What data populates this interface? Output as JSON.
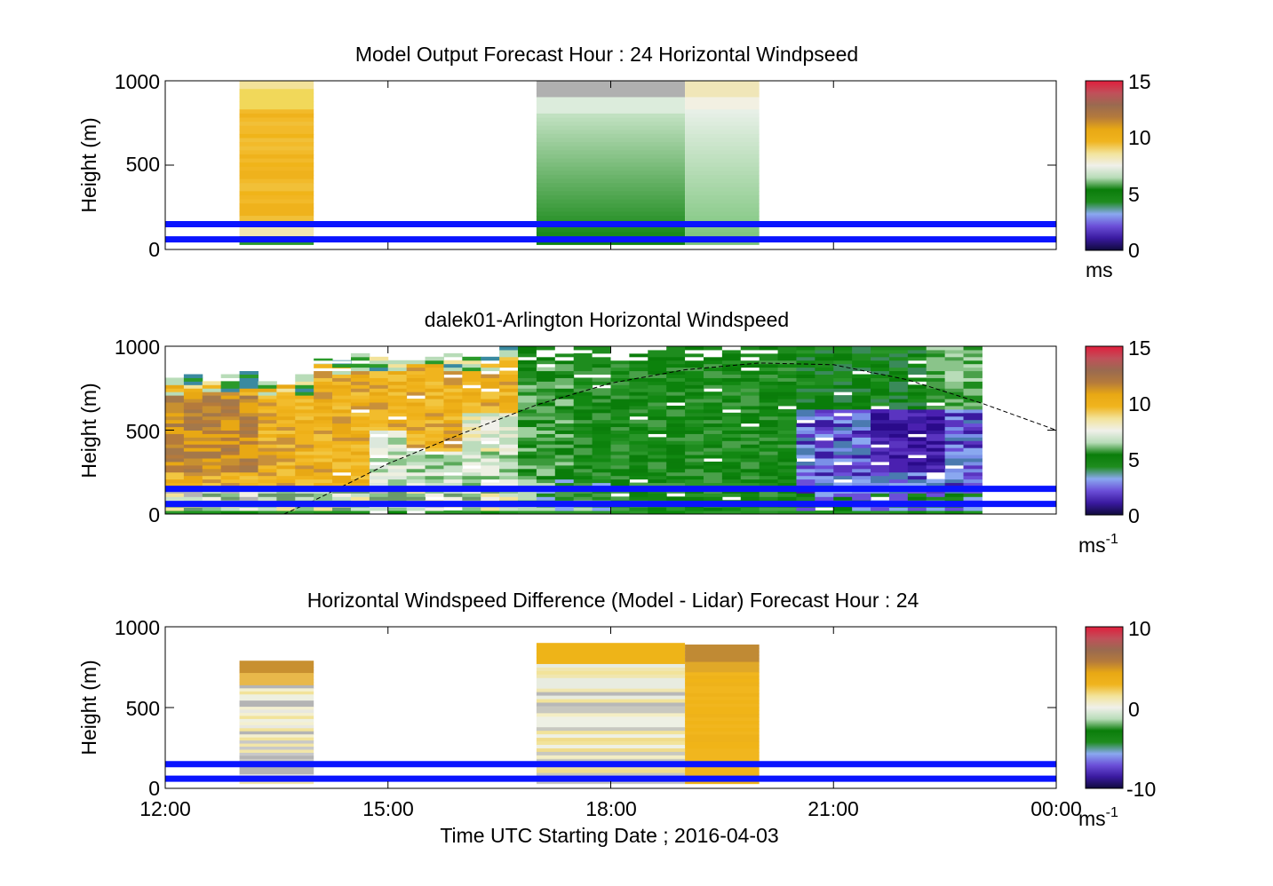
{
  "figure": {
    "xlabel": "Time UTC  Starting Date ; 2016-04-03",
    "x_tick_labels": [
      "12:00",
      "15:00",
      "18:00",
      "21:00",
      "00:00"
    ],
    "x_range_hours": [
      12,
      24
    ],
    "colormap_stops": [
      "#0f0a3c",
      "#3a1aa0",
      "#6b4fd8",
      "#8aa8f0",
      "#1e8c1e",
      "#0a7d0a",
      "#b8dcb8",
      "#f0f0ea",
      "#f2e39a",
      "#f0b41e",
      "#e8a814",
      "#b47a3c",
      "#9a6a50",
      "#c0505a",
      "#e01e3c"
    ],
    "line_color": "#0a14ff"
  },
  "chart_data": [
    {
      "type": "heatmap",
      "title": "Model Output   Forecast Hour : 24 Horizontal Windpseed",
      "ylabel": "Height (m)",
      "ylim": [
        0,
        1000
      ],
      "y_tick_labels": [
        "0",
        "500",
        "1000"
      ],
      "colorbar": {
        "label": "ms",
        "range": [
          0,
          15
        ],
        "tick_labels": [
          "0",
          "5",
          "10",
          "15"
        ]
      },
      "blocks": [
        {
          "x": [
            13.0,
            14.0
          ],
          "h_top": 1000,
          "kind": "model_a"
        },
        {
          "x": [
            17.0,
            19.0
          ],
          "h_top": 1000,
          "kind": "model_b"
        },
        {
          "x": [
            19.0,
            20.0
          ],
          "h_top": 1000,
          "kind": "model_c"
        }
      ],
      "hlines_m": [
        150,
        60
      ]
    },
    {
      "type": "heatmap",
      "title": "dalek01-Arlington  Horizontal Windspeed",
      "ylabel": "Height (m)",
      "ylim": [
        0,
        1000
      ],
      "y_tick_labels": [
        "0",
        "500",
        "1000"
      ],
      "colorbar": {
        "label": "ms-1",
        "range": [
          0,
          15
        ],
        "tick_labels": [
          "0",
          "5",
          "10",
          "15"
        ]
      },
      "data_x_range": [
        12,
        23.0
      ],
      "boundary_layer_curve": [
        [
          13.6,
          0
        ],
        [
          14.0,
          80
        ],
        [
          15.0,
          300
        ],
        [
          16.0,
          480
        ],
        [
          17.0,
          650
        ],
        [
          18.0,
          780
        ],
        [
          19.0,
          860
        ],
        [
          20.0,
          900
        ],
        [
          21.0,
          890
        ],
        [
          22.0,
          800
        ],
        [
          23.0,
          660
        ],
        [
          24.0,
          500
        ]
      ],
      "hlines_m": [
        150,
        60
      ]
    },
    {
      "type": "heatmap",
      "title": "Horizontal Windspeed Difference (Model - Lidar) Forecast Hour : 24",
      "ylabel": "Height (m)",
      "ylim": [
        0,
        1000
      ],
      "y_tick_labels": [
        "0",
        "500",
        "1000"
      ],
      "colorbar": {
        "label": "ms-1",
        "range": [
          -10,
          10
        ],
        "tick_labels": [
          "-10",
          "0",
          "10"
        ]
      },
      "blocks": [
        {
          "x": [
            13.0,
            14.0
          ],
          "h_top": 790,
          "kind": "diff_a"
        },
        {
          "x": [
            17.0,
            19.0
          ],
          "h_top": 900,
          "kind": "diff_b"
        },
        {
          "x": [
            19.0,
            20.0
          ],
          "h_top": 890,
          "kind": "diff_c"
        }
      ],
      "hlines_m": [
        150,
        60
      ]
    }
  ]
}
